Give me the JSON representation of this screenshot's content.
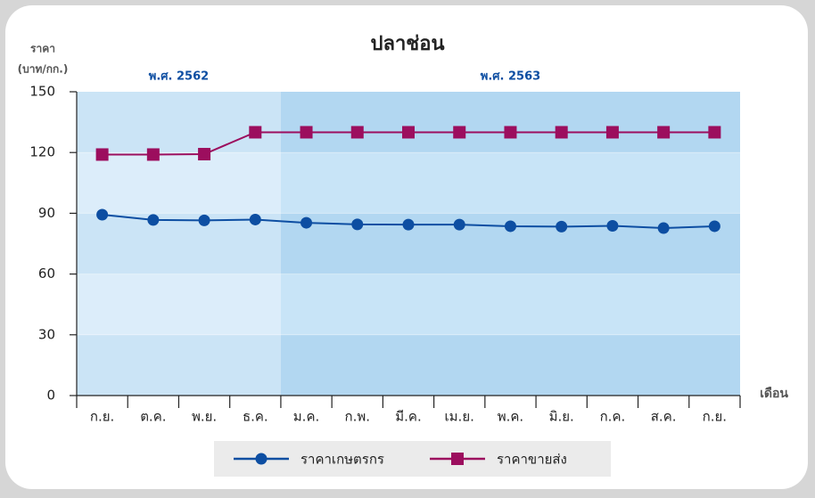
{
  "chart_data": {
    "type": "line",
    "title": "ปลาช่อน",
    "y_label": [
      "ราคา",
      "(บาท/กก.)"
    ],
    "x_label": "เดือน",
    "periods": [
      "พ.ศ. 2562",
      "พ.ศ. 2563"
    ],
    "categories": [
      "ก.ย.",
      "ต.ค.",
      "พ.ย.",
      "ธ.ค.",
      "ม.ค.",
      "ก.พ.",
      "มี.ค.",
      "เม.ย.",
      "พ.ค.",
      "มิ.ย.",
      "ก.ค.",
      "ส.ค.",
      "ก.ย."
    ],
    "series": [
      {
        "name": "ราคาเกษตรกร",
        "color": "#0d4ea2",
        "marker": "circle",
        "values": [
          89.3,
          86.7,
          86.5,
          86.9,
          85.3,
          84.5,
          84.4,
          84.4,
          83.6,
          83.4,
          83.8,
          82.7,
          83.6
        ]
      },
      {
        "name": "ราคาขายส่ง",
        "color": "#9c0e5e",
        "marker": "square",
        "values": [
          119,
          119,
          119.2,
          130,
          130,
          130,
          130,
          130,
          130,
          130,
          130,
          130,
          130
        ]
      }
    ],
    "ylim": [
      0,
      150
    ],
    "yticks": [
      0,
      30,
      60,
      90,
      120,
      150
    ]
  }
}
